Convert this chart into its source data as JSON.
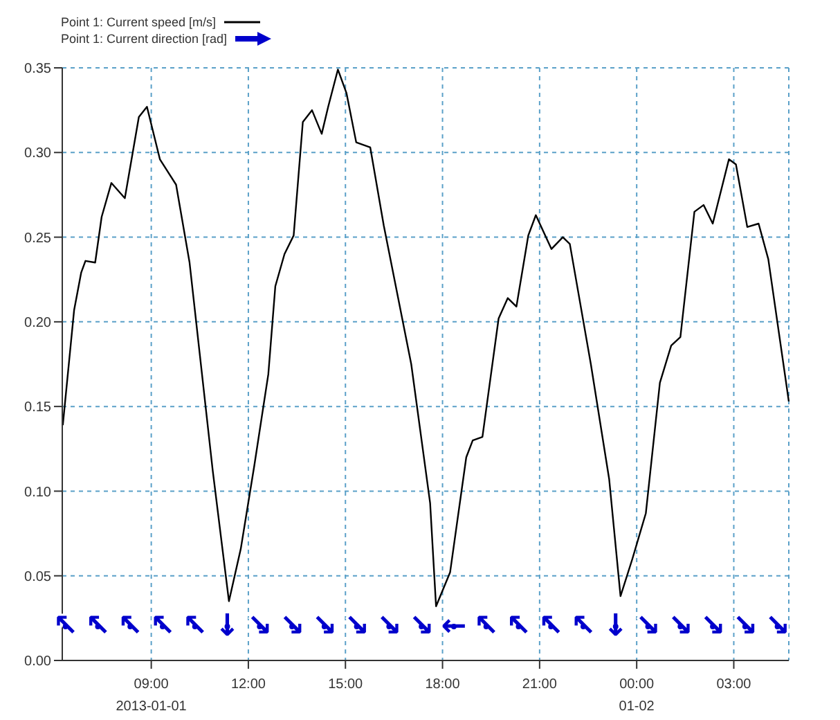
{
  "chart_data": {
    "type": "line",
    "xlim": [
      "2013-01-01T06:15",
      "2013-01-02T04:42"
    ],
    "xticks": [
      {
        "value": "2013-01-01T09:00",
        "label": "09:00\n2013-01-01"
      },
      {
        "value": "2013-01-01T12:00",
        "label": "12:00"
      },
      {
        "value": "2013-01-01T15:00",
        "label": "15:00"
      },
      {
        "value": "2013-01-01T18:00",
        "label": "18:00"
      },
      {
        "value": "2013-01-01T21:00",
        "label": "21:00"
      },
      {
        "value": "2013-01-02T00:00",
        "label": "00:00\n01-02"
      },
      {
        "value": "2013-01-02T03:00",
        "label": "03:00"
      }
    ],
    "ylim": [
      0,
      0.35
    ],
    "yticks": [
      {
        "value": 0,
        "label": "0.00"
      },
      {
        "value": 0.05,
        "label": "0.05"
      },
      {
        "value": 0.1,
        "label": "0.10"
      },
      {
        "value": 0.15,
        "label": "0.15"
      },
      {
        "value": 0.2,
        "label": "0.20"
      },
      {
        "value": 0.25,
        "label": "0.25"
      },
      {
        "value": 0.3,
        "label": "0.30"
      },
      {
        "value": 0.35,
        "label": "0.35"
      }
    ],
    "grid": true,
    "legend": "top left",
    "series": [
      {
        "name": "Point 1: Current speed  [m/s]",
        "color": "#000000",
        "x": [
          "2013-01-01T06:16",
          "2013-01-01T06:37",
          "2013-01-01T06:50",
          "2013-01-01T06:58",
          "2013-01-01T07:16",
          "2013-01-01T07:28",
          "2013-01-01T07:46",
          "2013-01-01T08:11",
          "2013-01-01T08:37",
          "2013-01-01T08:52",
          "2013-01-01T09:16",
          "2013-01-01T09:46",
          "2013-01-01T10:11",
          "2013-01-01T10:54",
          "2013-01-01T11:24",
          "2013-01-01T11:46",
          "2013-01-01T12:11",
          "2013-01-01T12:37",
          "2013-01-01T12:50",
          "2013-01-01T13:07",
          "2013-01-01T13:24",
          "2013-01-01T13:41",
          "2013-01-01T13:58",
          "2013-01-01T14:16",
          "2013-01-01T14:28",
          "2013-01-01T14:46",
          "2013-01-01T15:02",
          "2013-01-01T15:20",
          "2013-01-01T15:46",
          "2013-01-01T16:11",
          "2013-01-01T17:02",
          "2013-01-01T17:37",
          "2013-01-01T17:48",
          "2013-01-01T18:14",
          "2013-01-01T18:44",
          "2013-01-01T18:56",
          "2013-01-01T19:14",
          "2013-01-01T19:44",
          "2013-01-01T20:01",
          "2013-01-01T20:17",
          "2013-01-01T20:39",
          "2013-01-01T20:53",
          "2013-01-01T21:22",
          "2013-01-01T21:43",
          "2013-01-01T21:56",
          "2013-01-01T22:35",
          "2013-01-01T23:09",
          "2013-01-01T23:30",
          "2013-01-01T23:52",
          "2013-01-02T00:17",
          "2013-01-02T00:43",
          "2013-01-02T01:04",
          "2013-01-02T01:21",
          "2013-01-02T01:47",
          "2013-01-02T02:04",
          "2013-01-02T02:21",
          "2013-01-02T02:51",
          "2013-01-02T03:04",
          "2013-01-02T03:25",
          "2013-01-02T03:46",
          "2013-01-02T04:04",
          "2013-01-02T04:42"
        ],
        "values": [
          0.139,
          0.207,
          0.229,
          0.236,
          0.235,
          0.262,
          0.282,
          0.273,
          0.321,
          0.327,
          0.296,
          0.281,
          0.235,
          0.112,
          0.035,
          0.066,
          0.115,
          0.169,
          0.221,
          0.24,
          0.251,
          0.318,
          0.325,
          0.311,
          0.327,
          0.349,
          0.335,
          0.306,
          0.303,
          0.257,
          0.175,
          0.093,
          0.032,
          0.052,
          0.12,
          0.13,
          0.132,
          0.202,
          0.214,
          0.209,
          0.251,
          0.263,
          0.243,
          0.25,
          0.246,
          0.175,
          0.107,
          0.038,
          0.06,
          0.087,
          0.164,
          0.186,
          0.191,
          0.265,
          0.269,
          0.258,
          0.296,
          0.293,
          0.256,
          0.258,
          0.237,
          0.153
        ]
      },
      {
        "name": "Point 1: Current direction [rad]",
        "type": "scatter",
        "color": "#0000cc",
        "x": [
          "2013-01-01T06:21",
          "2013-01-01T07:21",
          "2013-01-01T08:21",
          "2013-01-01T09:21",
          "2013-01-01T10:21",
          "2013-01-01T11:21",
          "2013-01-01T12:21",
          "2013-01-01T13:21",
          "2013-01-01T14:21",
          "2013-01-01T15:21",
          "2013-01-01T16:21",
          "2013-01-01T17:21",
          "2013-01-01T18:21",
          "2013-01-01T19:21",
          "2013-01-01T20:21",
          "2013-01-01T21:21",
          "2013-01-01T22:21",
          "2013-01-01T23:21",
          "2013-01-02T00:21",
          "2013-01-02T01:21",
          "2013-01-02T02:21",
          "2013-01-02T03:21",
          "2013-01-02T04:21"
        ],
        "values": [
          0.02,
          0.02,
          0.02,
          0.02,
          0.02,
          0.02,
          0.02,
          0.02,
          0.02,
          0.02,
          0.02,
          0.02,
          0.02,
          0.02,
          0.02,
          0.02,
          0.02,
          0.02,
          0.02,
          0.02,
          0.02,
          0.02,
          0.02
        ],
        "value_labels": [
          "↖",
          "↖",
          "↖",
          "↖",
          "↖",
          "↓",
          "↘",
          "↘",
          "↘",
          "↘",
          "↘",
          "↘",
          "←",
          "↖",
          "↖",
          "↖",
          "↖",
          "↓",
          "↘",
          "↘",
          "↘",
          "↘",
          "↘"
        ]
      }
    ]
  }
}
